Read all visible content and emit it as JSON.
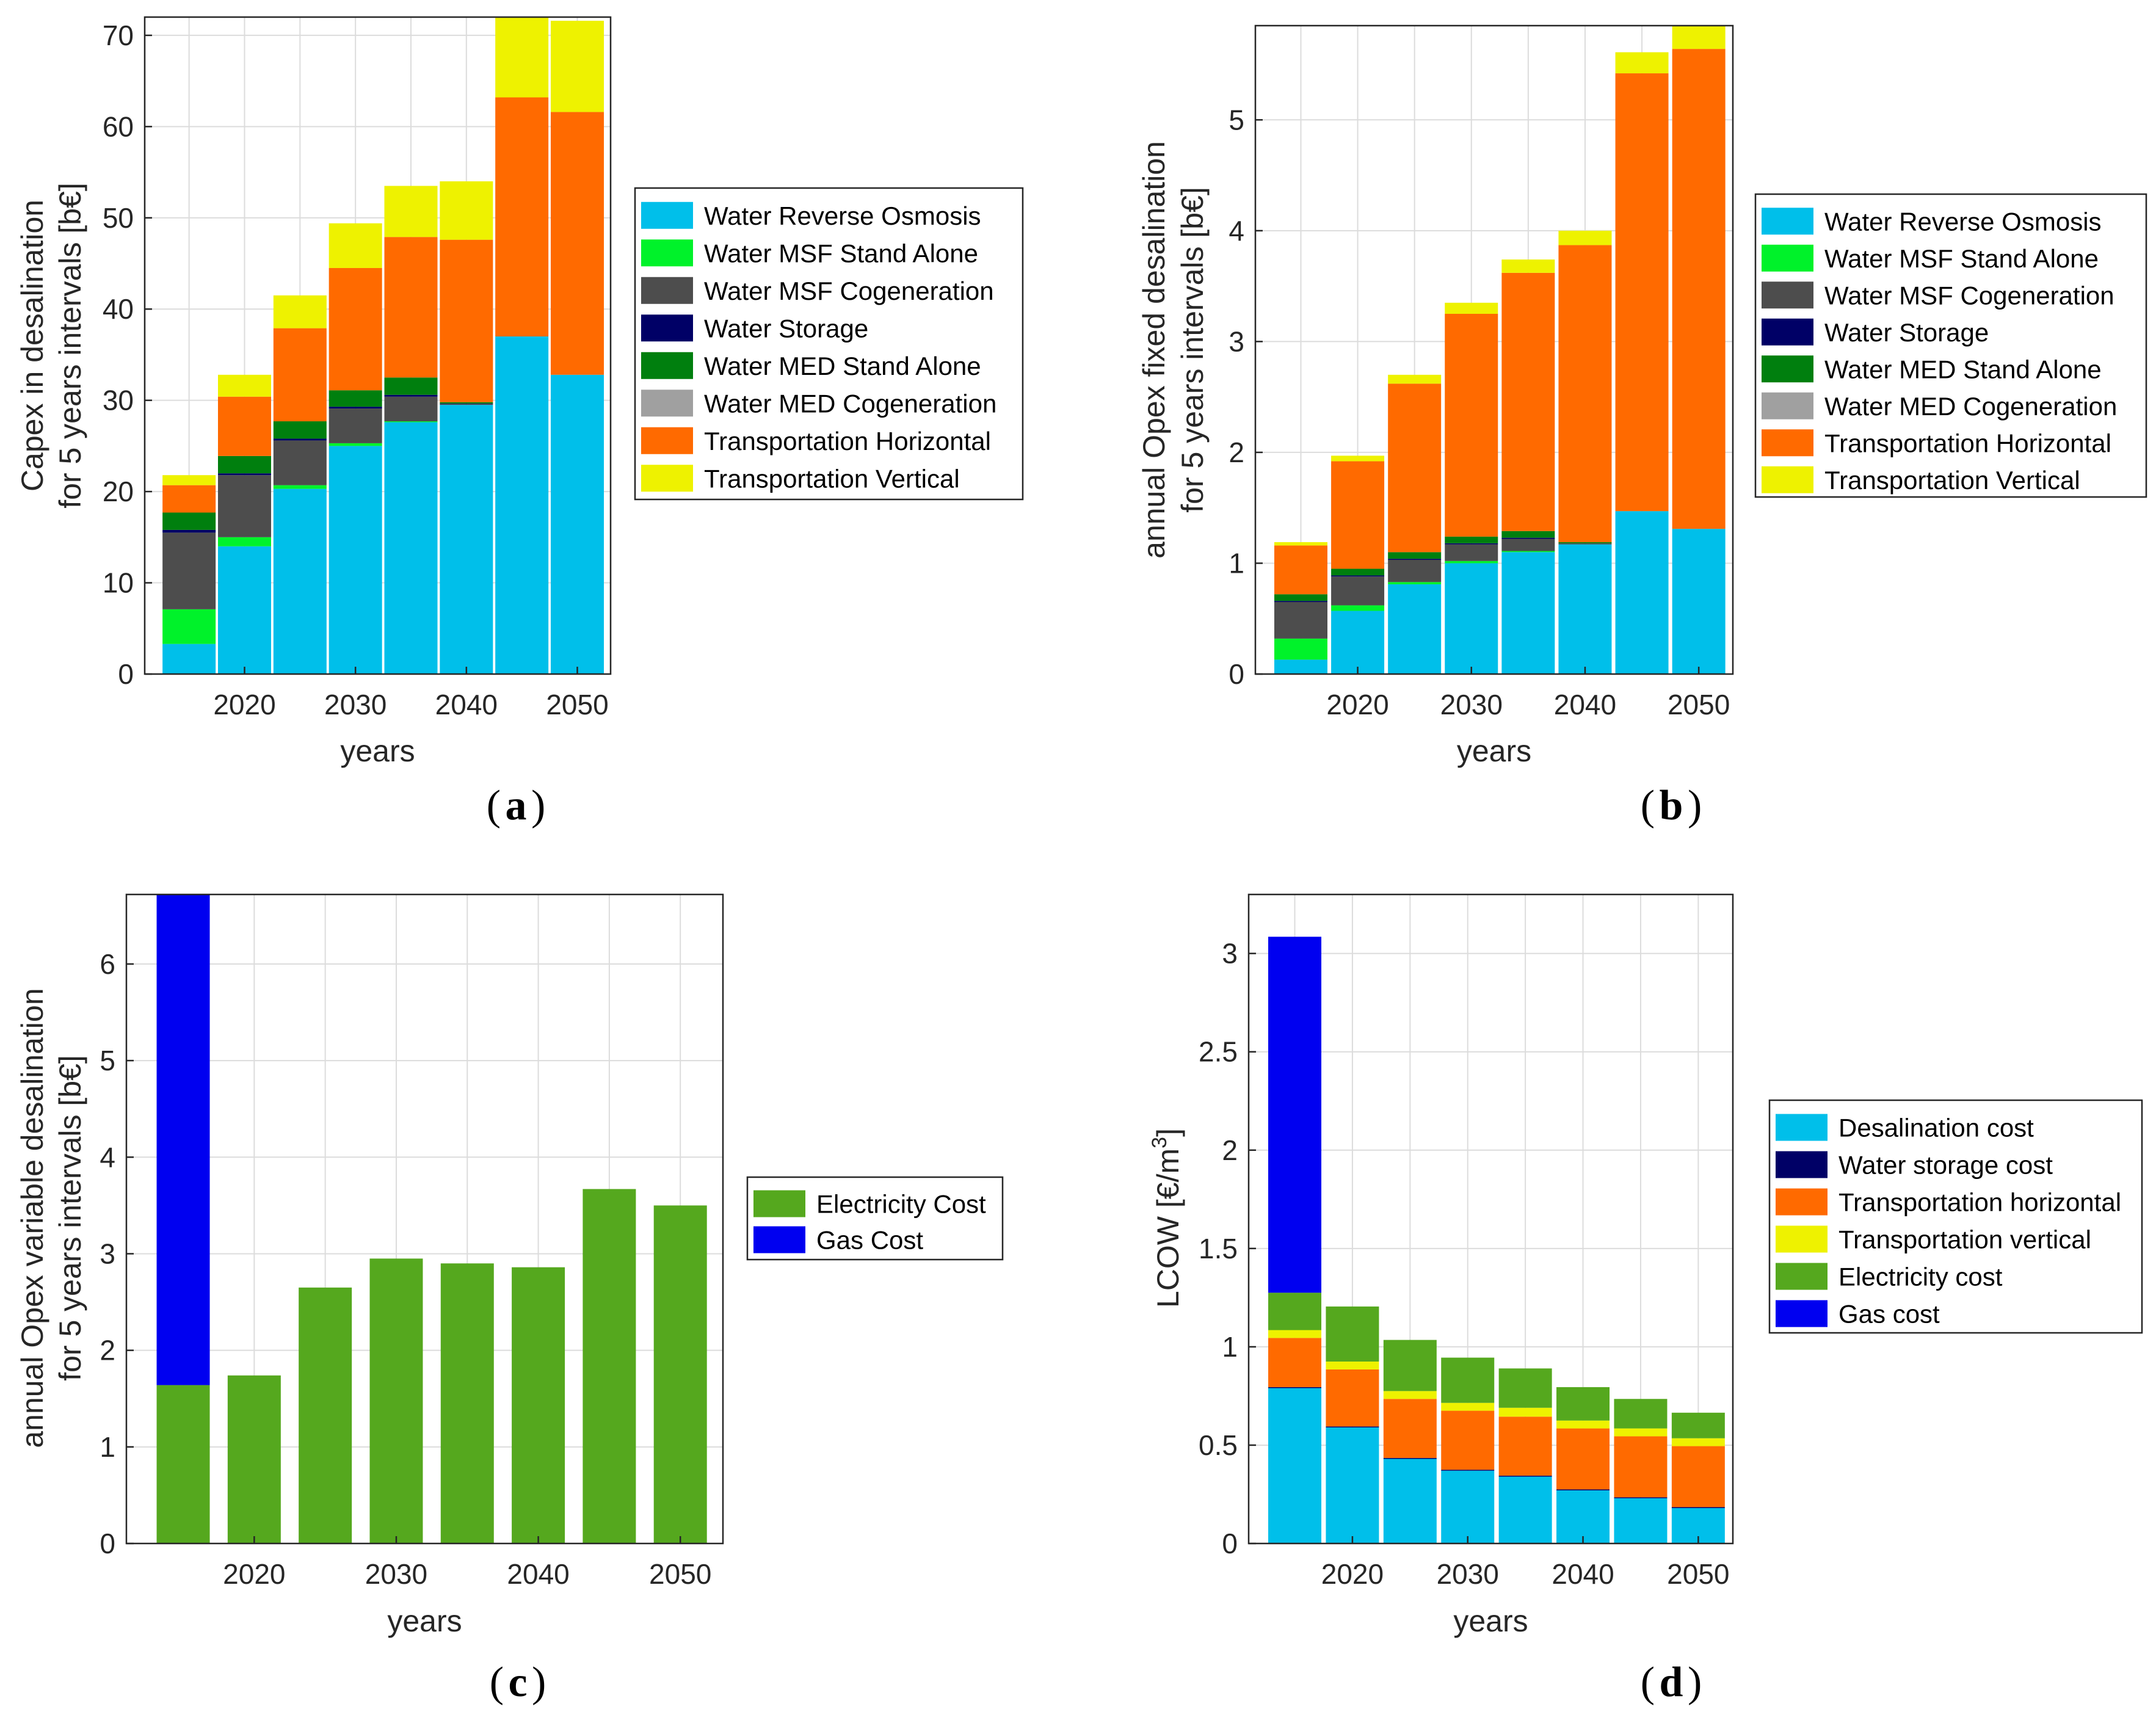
{
  "colors": {
    "water_reverse_osmosis": "#00BFEA",
    "water_msf_stand_alone": "#00F22A",
    "water_msf_cogeneration": "#4D4D4D",
    "water_storage": "#000066",
    "water_med_stand_alone": "#007F0E",
    "water_med_cogeneration": "#A0A0A0",
    "transportation_horizontal": "#FF6A00",
    "transportation_vertical": "#EEF200",
    "electricity": "#55A81E",
    "gas": "#0000F0",
    "grid": "#DCDCDC",
    "axis": "#262626"
  },
  "chart_data": [
    {
      "id": "a",
      "panel_label": "a",
      "type": "bar",
      "stacked": true,
      "title": "",
      "xlabel": "years",
      "ylabel_lines": [
        "Capex in desalination",
        "for 5 years intervals [b€]"
      ],
      "x": [
        2015,
        2020,
        2025,
        2030,
        2035,
        2040,
        2045,
        2050
      ],
      "xlim": [
        2011,
        2053
      ],
      "xticks": [
        2020,
        2030,
        2040,
        2050
      ],
      "xtick_labels": [
        "2020",
        "2030",
        "2040",
        "2050"
      ],
      "ylim": [
        0,
        72
      ],
      "yticks": [
        0,
        10,
        20,
        30,
        40,
        50,
        60,
        70
      ],
      "ytick_labels": [
        "0",
        "10",
        "20",
        "30",
        "40",
        "50",
        "60",
        "70"
      ],
      "grid": true,
      "legend_position": "right",
      "series": [
        {
          "name": "Water Reverse Osmosis",
          "color_key": "water_reverse_osmosis",
          "values": [
            3.3,
            14.0,
            20.3,
            25.0,
            27.6,
            29.5,
            37.0,
            32.8
          ]
        },
        {
          "name": "Water MSF Stand Alone",
          "color_key": "water_msf_stand_alone",
          "values": [
            3.8,
            1.0,
            0.4,
            0.3,
            0.1,
            0,
            0,
            0
          ]
        },
        {
          "name": "Water MSF Cogeneration",
          "color_key": "water_msf_cogeneration",
          "values": [
            8.4,
            6.8,
            4.9,
            3.8,
            2.7,
            0.1,
            0,
            0
          ]
        },
        {
          "name": "Water Storage",
          "color_key": "water_storage",
          "values": [
            0.3,
            0.2,
            0.2,
            0.2,
            0.2,
            0.05,
            0,
            0
          ]
        },
        {
          "name": "Water MED Stand Alone",
          "color_key": "water_med_stand_alone",
          "values": [
            1.9,
            1.9,
            1.9,
            1.8,
            1.9,
            0.15,
            0,
            0
          ]
        },
        {
          "name": "Water MED Cogeneration",
          "color_key": "water_med_cogeneration",
          "values": [
            0,
            0,
            0,
            0,
            0,
            0,
            0,
            0
          ]
        },
        {
          "name": "Transportation Horizontal",
          "color_key": "transportation_horizontal",
          "values": [
            3.0,
            6.5,
            10.2,
            13.4,
            15.4,
            17.8,
            26.2,
            28.8
          ]
        },
        {
          "name": "Transportation Vertical",
          "color_key": "transportation_vertical",
          "values": [
            1.1,
            2.4,
            3.6,
            4.9,
            5.6,
            6.4,
            9.0,
            10.0
          ]
        }
      ]
    },
    {
      "id": "b",
      "panel_label": "b",
      "type": "bar",
      "stacked": true,
      "title": "",
      "xlabel": "years",
      "ylabel_lines": [
        "annual Opex fixed desalination",
        "for 5 years intervals [b€]"
      ],
      "x": [
        2015,
        2020,
        2025,
        2030,
        2035,
        2040,
        2045,
        2050
      ],
      "xlim": [
        2011,
        2053
      ],
      "xticks": [
        2020,
        2030,
        2040,
        2050
      ],
      "xtick_labels": [
        "2020",
        "2030",
        "2040",
        "2050"
      ],
      "ylim": [
        0,
        5.85
      ],
      "yticks": [
        0,
        1,
        2,
        3,
        4,
        5
      ],
      "ytick_labels": [
        "0",
        "1",
        "2",
        "3",
        "4",
        "5"
      ],
      "grid": true,
      "legend_position": "right",
      "series": [
        {
          "name": "Water Reverse Osmosis",
          "color_key": "water_reverse_osmosis",
          "values": [
            0.13,
            0.57,
            0.81,
            1.0,
            1.1,
            1.17,
            1.47,
            1.31
          ]
        },
        {
          "name": "Water MSF Stand Alone",
          "color_key": "water_msf_stand_alone",
          "values": [
            0.19,
            0.05,
            0.02,
            0.02,
            0.01,
            0,
            0,
            0
          ]
        },
        {
          "name": "Water MSF Cogeneration",
          "color_key": "water_msf_cogeneration",
          "values": [
            0.33,
            0.26,
            0.2,
            0.15,
            0.11,
            0.01,
            0,
            0
          ]
        },
        {
          "name": "Water Storage",
          "color_key": "water_storage",
          "values": [
            0.01,
            0.01,
            0.01,
            0.01,
            0.01,
            0,
            0,
            0
          ]
        },
        {
          "name": "Water MED Stand Alone",
          "color_key": "water_med_stand_alone",
          "values": [
            0.06,
            0.06,
            0.06,
            0.06,
            0.06,
            0.01,
            0,
            0
          ]
        },
        {
          "name": "Water MED Cogeneration",
          "color_key": "water_med_cogeneration",
          "values": [
            0,
            0,
            0,
            0,
            0,
            0,
            0,
            0
          ]
        },
        {
          "name": "Transportation Horizontal",
          "color_key": "transportation_horizontal",
          "values": [
            0.44,
            0.97,
            1.52,
            2.01,
            2.33,
            2.68,
            3.95,
            4.33
          ]
        },
        {
          "name": "Transportation Vertical",
          "color_key": "transportation_vertical",
          "values": [
            0.03,
            0.05,
            0.08,
            0.1,
            0.12,
            0.13,
            0.19,
            0.21
          ]
        }
      ]
    },
    {
      "id": "c",
      "panel_label": "c",
      "type": "bar",
      "stacked": true,
      "title": "",
      "xlabel": "years",
      "ylabel_lines": [
        "annual Opex variable desalination",
        "for 5 years intervals [b€]"
      ],
      "x": [
        2015,
        2020,
        2025,
        2030,
        2035,
        2040,
        2045,
        2050
      ],
      "xlim": [
        2011,
        2053
      ],
      "xticks": [
        2020,
        2030,
        2040,
        2050
      ],
      "xtick_labels": [
        "2020",
        "2030",
        "2040",
        "2050"
      ],
      "ylim": [
        0,
        6.72
      ],
      "yticks": [
        0,
        1,
        2,
        3,
        4,
        5,
        6
      ],
      "ytick_labels": [
        "0",
        "1",
        "2",
        "3",
        "4",
        "5",
        "6"
      ],
      "grid": true,
      "legend_position": "right",
      "series": [
        {
          "name": "Electricity Cost",
          "color_key": "electricity",
          "values": [
            1.64,
            1.74,
            2.65,
            2.95,
            2.9,
            2.86,
            3.67,
            3.5
          ]
        },
        {
          "name": "Gas Cost",
          "color_key": "gas",
          "values": [
            5.1,
            0,
            0,
            0,
            0,
            0,
            0,
            0
          ]
        }
      ]
    },
    {
      "id": "d",
      "panel_label": "d",
      "type": "bar",
      "stacked": true,
      "title": "",
      "xlabel": "years",
      "ylabel_lines": [
        "LCOW [€/m",
        "3",
        "]"
      ],
      "x": [
        2015,
        2020,
        2025,
        2030,
        2035,
        2040,
        2045,
        2050
      ],
      "xlim": [
        2011,
        2053
      ],
      "xticks": [
        2020,
        2030,
        2040,
        2050
      ],
      "xtick_labels": [
        "2020",
        "2030",
        "2040",
        "2050"
      ],
      "ylim": [
        0,
        3.3
      ],
      "yticks": [
        0,
        0.5,
        1,
        1.5,
        2,
        2.5,
        3
      ],
      "ytick_labels": [
        "0",
        "0.5",
        "1",
        "1.5",
        "2",
        "2.5",
        "3"
      ],
      "grid": true,
      "legend_position": "right",
      "series": [
        {
          "name": "Desalination cost",
          "color_key": "water_reverse_osmosis",
          "values": [
            0.79,
            0.59,
            0.43,
            0.37,
            0.34,
            0.27,
            0.23,
            0.18
          ]
        },
        {
          "name": "Water storage cost",
          "color_key": "water_storage",
          "values": [
            0.005,
            0.005,
            0.005,
            0.005,
            0.005,
            0.005,
            0.005,
            0.005
          ]
        },
        {
          "name": "Transportation horizontal",
          "color_key": "transportation_horizontal",
          "values": [
            0.25,
            0.29,
            0.3,
            0.3,
            0.3,
            0.31,
            0.31,
            0.31
          ]
        },
        {
          "name": "Transportation vertical",
          "color_key": "transportation_vertical",
          "values": [
            0.04,
            0.04,
            0.04,
            0.04,
            0.045,
            0.04,
            0.04,
            0.04
          ]
        },
        {
          "name": "Electricity cost",
          "color_key": "electricity",
          "values": [
            0.19,
            0.28,
            0.26,
            0.23,
            0.2,
            0.17,
            0.15,
            0.13
          ]
        },
        {
          "name": "Gas cost",
          "color_key": "gas",
          "values": [
            1.81,
            0,
            0,
            0,
            0,
            0,
            0,
            0
          ]
        }
      ]
    }
  ]
}
